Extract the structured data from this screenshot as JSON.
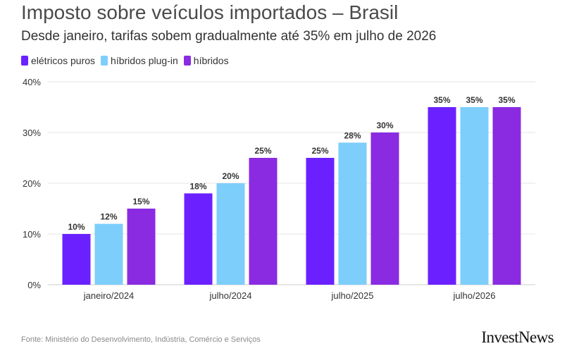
{
  "title": "Imposto sobre veículos importados – Brasil",
  "subtitle": "Desde janeiro, tarifas sobem gradualmente até 35% em julho de 2026",
  "source": "Fonte: Ministério do Desenvolvimento, Indústria, Comércio e Serviços",
  "brand": "InvestNews",
  "colors": {
    "eletricos": "#6b21ff",
    "plugin": "#7dcefb",
    "hibridos": "#8a2be2",
    "grid": "#e5e5e5",
    "axis": "#cccccc",
    "text": "#333333"
  },
  "chart_data": {
    "type": "bar",
    "categories": [
      "janeiro/2024",
      "julho/2024",
      "julho/2025",
      "julho/2026"
    ],
    "series": [
      {
        "name": "elétricos puros",
        "values": [
          10,
          18,
          25,
          35
        ],
        "labels": [
          "10%",
          "18%",
          "25%",
          "35%"
        ],
        "color": "#6b21ff"
      },
      {
        "name": "híbridos plug-in",
        "values": [
          12,
          20,
          28,
          35
        ],
        "labels": [
          "12%",
          "20%",
          "28%",
          "35%"
        ],
        "color": "#7dcefb"
      },
      {
        "name": "híbridos",
        "values": [
          15,
          25,
          30,
          35
        ],
        "labels": [
          "15%",
          "25%",
          "30%",
          "35%"
        ],
        "color": "#8a2be2"
      }
    ],
    "yticks": [
      0,
      10,
      20,
      30,
      40
    ],
    "ytick_labels": [
      "0%",
      "10%",
      "20%",
      "30%",
      "40%"
    ],
    "ylim": [
      0,
      40
    ],
    "grid": true,
    "legend_position": "top-left"
  }
}
